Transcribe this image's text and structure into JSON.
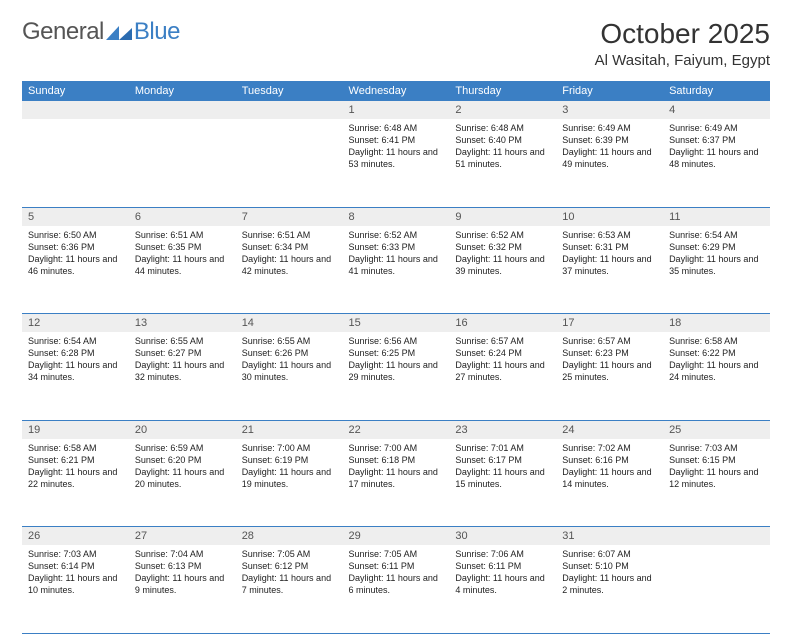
{
  "brand": {
    "general": "General",
    "blue": "Blue"
  },
  "title": "October 2025",
  "location": "Al Wasitah, Faiyum, Egypt",
  "colors": {
    "header_bg": "#3b7fc4",
    "header_text": "#ffffff",
    "daynum_bg": "#eeeeee",
    "row_divider": "#3b7fc4",
    "body_text": "#222222",
    "page_bg": "#ffffff"
  },
  "weekdays": [
    "Sunday",
    "Monday",
    "Tuesday",
    "Wednesday",
    "Thursday",
    "Friday",
    "Saturday"
  ],
  "weeks": [
    {
      "nums": [
        "",
        "",
        "",
        "1",
        "2",
        "3",
        "4"
      ],
      "cells": [
        null,
        null,
        null,
        {
          "sunrise": "Sunrise: 6:48 AM",
          "sunset": "Sunset: 6:41 PM",
          "daylight": "Daylight: 11 hours and 53 minutes."
        },
        {
          "sunrise": "Sunrise: 6:48 AM",
          "sunset": "Sunset: 6:40 PM",
          "daylight": "Daylight: 11 hours and 51 minutes."
        },
        {
          "sunrise": "Sunrise: 6:49 AM",
          "sunset": "Sunset: 6:39 PM",
          "daylight": "Daylight: 11 hours and 49 minutes."
        },
        {
          "sunrise": "Sunrise: 6:49 AM",
          "sunset": "Sunset: 6:37 PM",
          "daylight": "Daylight: 11 hours and 48 minutes."
        }
      ]
    },
    {
      "nums": [
        "5",
        "6",
        "7",
        "8",
        "9",
        "10",
        "11"
      ],
      "cells": [
        {
          "sunrise": "Sunrise: 6:50 AM",
          "sunset": "Sunset: 6:36 PM",
          "daylight": "Daylight: 11 hours and 46 minutes."
        },
        {
          "sunrise": "Sunrise: 6:51 AM",
          "sunset": "Sunset: 6:35 PM",
          "daylight": "Daylight: 11 hours and 44 minutes."
        },
        {
          "sunrise": "Sunrise: 6:51 AM",
          "sunset": "Sunset: 6:34 PM",
          "daylight": "Daylight: 11 hours and 42 minutes."
        },
        {
          "sunrise": "Sunrise: 6:52 AM",
          "sunset": "Sunset: 6:33 PM",
          "daylight": "Daylight: 11 hours and 41 minutes."
        },
        {
          "sunrise": "Sunrise: 6:52 AM",
          "sunset": "Sunset: 6:32 PM",
          "daylight": "Daylight: 11 hours and 39 minutes."
        },
        {
          "sunrise": "Sunrise: 6:53 AM",
          "sunset": "Sunset: 6:31 PM",
          "daylight": "Daylight: 11 hours and 37 minutes."
        },
        {
          "sunrise": "Sunrise: 6:54 AM",
          "sunset": "Sunset: 6:29 PM",
          "daylight": "Daylight: 11 hours and 35 minutes."
        }
      ]
    },
    {
      "nums": [
        "12",
        "13",
        "14",
        "15",
        "16",
        "17",
        "18"
      ],
      "cells": [
        {
          "sunrise": "Sunrise: 6:54 AM",
          "sunset": "Sunset: 6:28 PM",
          "daylight": "Daylight: 11 hours and 34 minutes."
        },
        {
          "sunrise": "Sunrise: 6:55 AM",
          "sunset": "Sunset: 6:27 PM",
          "daylight": "Daylight: 11 hours and 32 minutes."
        },
        {
          "sunrise": "Sunrise: 6:55 AM",
          "sunset": "Sunset: 6:26 PM",
          "daylight": "Daylight: 11 hours and 30 minutes."
        },
        {
          "sunrise": "Sunrise: 6:56 AM",
          "sunset": "Sunset: 6:25 PM",
          "daylight": "Daylight: 11 hours and 29 minutes."
        },
        {
          "sunrise": "Sunrise: 6:57 AM",
          "sunset": "Sunset: 6:24 PM",
          "daylight": "Daylight: 11 hours and 27 minutes."
        },
        {
          "sunrise": "Sunrise: 6:57 AM",
          "sunset": "Sunset: 6:23 PM",
          "daylight": "Daylight: 11 hours and 25 minutes."
        },
        {
          "sunrise": "Sunrise: 6:58 AM",
          "sunset": "Sunset: 6:22 PM",
          "daylight": "Daylight: 11 hours and 24 minutes."
        }
      ]
    },
    {
      "nums": [
        "19",
        "20",
        "21",
        "22",
        "23",
        "24",
        "25"
      ],
      "cells": [
        {
          "sunrise": "Sunrise: 6:58 AM",
          "sunset": "Sunset: 6:21 PM",
          "daylight": "Daylight: 11 hours and 22 minutes."
        },
        {
          "sunrise": "Sunrise: 6:59 AM",
          "sunset": "Sunset: 6:20 PM",
          "daylight": "Daylight: 11 hours and 20 minutes."
        },
        {
          "sunrise": "Sunrise: 7:00 AM",
          "sunset": "Sunset: 6:19 PM",
          "daylight": "Daylight: 11 hours and 19 minutes."
        },
        {
          "sunrise": "Sunrise: 7:00 AM",
          "sunset": "Sunset: 6:18 PM",
          "daylight": "Daylight: 11 hours and 17 minutes."
        },
        {
          "sunrise": "Sunrise: 7:01 AM",
          "sunset": "Sunset: 6:17 PM",
          "daylight": "Daylight: 11 hours and 15 minutes."
        },
        {
          "sunrise": "Sunrise: 7:02 AM",
          "sunset": "Sunset: 6:16 PM",
          "daylight": "Daylight: 11 hours and 14 minutes."
        },
        {
          "sunrise": "Sunrise: 7:03 AM",
          "sunset": "Sunset: 6:15 PM",
          "daylight": "Daylight: 11 hours and 12 minutes."
        }
      ]
    },
    {
      "nums": [
        "26",
        "27",
        "28",
        "29",
        "30",
        "31",
        ""
      ],
      "cells": [
        {
          "sunrise": "Sunrise: 7:03 AM",
          "sunset": "Sunset: 6:14 PM",
          "daylight": "Daylight: 11 hours and 10 minutes."
        },
        {
          "sunrise": "Sunrise: 7:04 AM",
          "sunset": "Sunset: 6:13 PM",
          "daylight": "Daylight: 11 hours and 9 minutes."
        },
        {
          "sunrise": "Sunrise: 7:05 AM",
          "sunset": "Sunset: 6:12 PM",
          "daylight": "Daylight: 11 hours and 7 minutes."
        },
        {
          "sunrise": "Sunrise: 7:05 AM",
          "sunset": "Sunset: 6:11 PM",
          "daylight": "Daylight: 11 hours and 6 minutes."
        },
        {
          "sunrise": "Sunrise: 7:06 AM",
          "sunset": "Sunset: 6:11 PM",
          "daylight": "Daylight: 11 hours and 4 minutes."
        },
        {
          "sunrise": "Sunrise: 6:07 AM",
          "sunset": "Sunset: 5:10 PM",
          "daylight": "Daylight: 11 hours and 2 minutes."
        },
        null
      ]
    }
  ]
}
